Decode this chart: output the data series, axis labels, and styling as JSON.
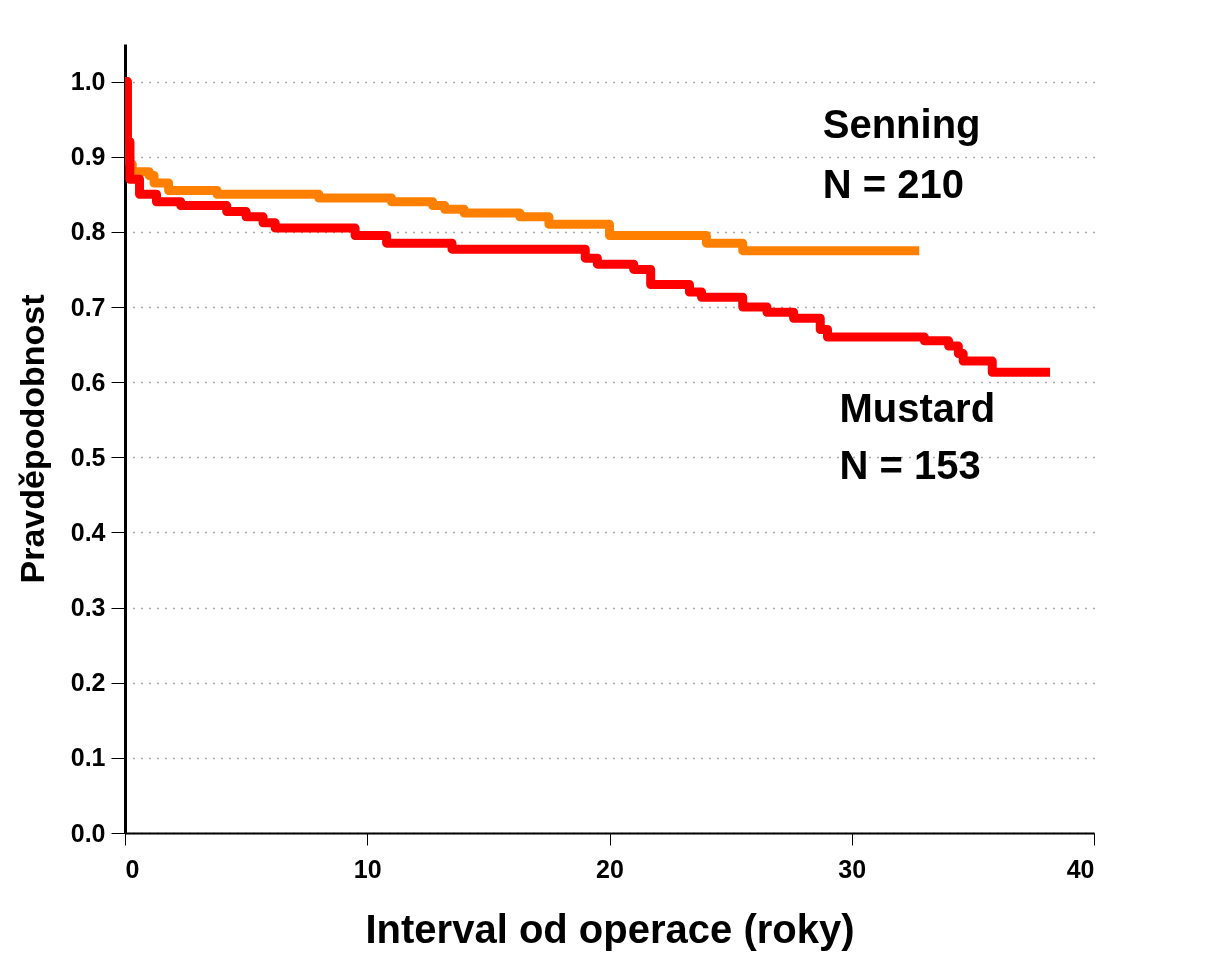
{
  "chart_data": {
    "type": "step",
    "xlabel": "Interval od operace (roky)",
    "ylabel": "Pravděpodobnost",
    "xlim": [
      0,
      40
    ],
    "xticks": [
      0,
      10,
      20,
      30,
      40
    ],
    "ylim": [
      0,
      1.05
    ],
    "yticks": [
      {
        "value": 0,
        "label": "0.0"
      },
      0.1,
      0.2,
      0.3,
      0.4,
      0.5,
      0.6,
      0.7,
      0.8,
      0.9,
      {
        "value": 1,
        "label": "1.0"
      }
    ],
    "grid": "y",
    "legend": false,
    "line_style": "solid",
    "series": [
      {
        "name": "Senning",
        "color": "#ff8000",
        "x": [
          0,
          0.1,
          0.2,
          0.3,
          1,
          1.2,
          1.8,
          3.8,
          8,
          11,
          12.7,
          13.2,
          14,
          16.3,
          17.5,
          20,
          24,
          25.5,
          32.6
        ],
        "values": [
          1.0,
          0.92,
          0.89,
          0.88,
          0.875,
          0.865,
          0.855,
          0.85,
          0.845,
          0.84,
          0.835,
          0.83,
          0.825,
          0.82,
          0.81,
          0.795,
          0.785,
          0.775,
          0.775
        ]
      },
      {
        "name": "Mustard",
        "color": "#ff0000",
        "x": [
          0,
          0.1,
          0.2,
          0.6,
          1.3,
          2.3,
          4.2,
          5,
          5.7,
          6.2,
          9.5,
          10.8,
          13.5,
          19,
          19.5,
          21,
          21.7,
          23.3,
          23.8,
          25.5,
          26.5,
          27.6,
          28.7,
          29,
          33,
          34,
          34.4,
          34.6,
          35.8,
          38
        ],
        "values": [
          1.0,
          0.92,
          0.87,
          0.85,
          0.84,
          0.835,
          0.827,
          0.82,
          0.812,
          0.805,
          0.795,
          0.785,
          0.777,
          0.765,
          0.757,
          0.75,
          0.73,
          0.72,
          0.713,
          0.7,
          0.693,
          0.685,
          0.67,
          0.66,
          0.655,
          0.648,
          0.638,
          0.628,
          0.613,
          0.613
        ]
      }
    ],
    "annotations": [
      "N = 210",
      "N = 153"
    ]
  }
}
